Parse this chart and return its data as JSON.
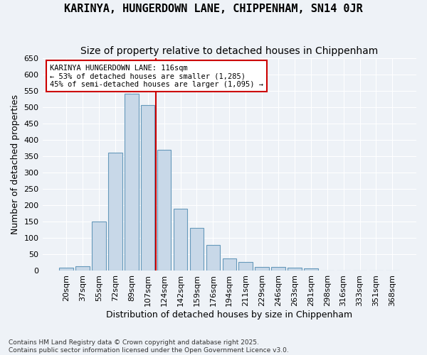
{
  "title": "KARINYA, HUNGERDOWN LANE, CHIPPENHAM, SN14 0JR",
  "subtitle": "Size of property relative to detached houses in Chippenham",
  "xlabel": "Distribution of detached houses by size in Chippenham",
  "ylabel": "Number of detached properties",
  "categories": [
    "20sqm",
    "37sqm",
    "55sqm",
    "72sqm",
    "89sqm",
    "107sqm",
    "124sqm",
    "142sqm",
    "159sqm",
    "176sqm",
    "194sqm",
    "211sqm",
    "229sqm",
    "246sqm",
    "263sqm",
    "281sqm",
    "298sqm",
    "316sqm",
    "333sqm",
    "351sqm",
    "368sqm"
  ],
  "values": [
    10,
    15,
    150,
    360,
    540,
    505,
    370,
    190,
    130,
    80,
    37,
    27,
    12,
    12,
    10,
    8,
    0,
    0,
    0,
    0,
    0
  ],
  "bar_color": "#c8d8e8",
  "bar_edge_color": "#6699bb",
  "ref_line_label": "KARINYA HUNGERDOWN LANE: 116sqm",
  "annotation_line1": "← 53% of detached houses are smaller (1,285)",
  "annotation_line2": "45% of semi-detached houses are larger (1,095) →",
  "annotation_box_color": "#ffffff",
  "annotation_box_edge": "#cc0000",
  "ref_line_color": "#cc0000",
  "ref_line_x": 5.5,
  "ylim": [
    0,
    650
  ],
  "yticks": [
    0,
    50,
    100,
    150,
    200,
    250,
    300,
    350,
    400,
    450,
    500,
    550,
    600,
    650
  ],
  "background_color": "#eef2f7",
  "grid_color": "#ffffff",
  "title_fontsize": 11,
  "subtitle_fontsize": 10,
  "xlabel_fontsize": 9,
  "ylabel_fontsize": 9,
  "tick_fontsize": 8,
  "footer_line1": "Contains HM Land Registry data © Crown copyright and database right 2025.",
  "footer_line2": "Contains public sector information licensed under the Open Government Licence v3.0."
}
